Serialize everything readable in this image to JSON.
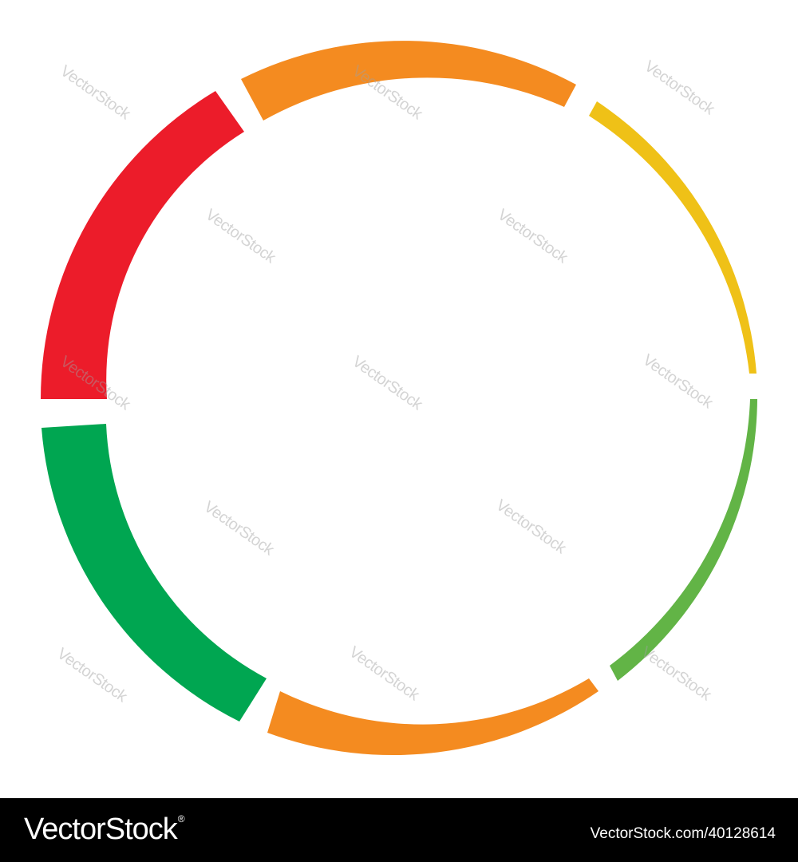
{
  "ring": {
    "segments": [
      {
        "name": "segment-red",
        "color": "#ec1c2a"
      },
      {
        "name": "segment-orange-top",
        "color": "#f48b20"
      },
      {
        "name": "segment-yellow",
        "color": "#efc117"
      },
      {
        "name": "segment-light-green",
        "color": "#62b446"
      },
      {
        "name": "segment-orange-bottom",
        "color": "#f48b20"
      },
      {
        "name": "segment-green",
        "color": "#00a651"
      }
    ]
  },
  "watermark": {
    "text": "VectorStock"
  },
  "footer": {
    "logo_text": "VectorStock",
    "logo_mark": "®",
    "image_id": "VectorStock.com/40128614"
  }
}
